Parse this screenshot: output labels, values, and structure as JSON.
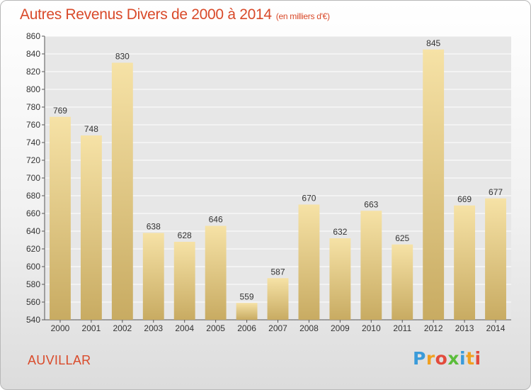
{
  "header": {
    "title": "Autres Revenus Divers de 2000 à 2014",
    "unit": "(en milliers d'€)"
  },
  "footer": {
    "place": "AUVILLAR",
    "logo_letters": [
      "P",
      "r",
      "o",
      "x",
      "i",
      "t",
      "i"
    ]
  },
  "colors": {
    "title": "#d94a2a",
    "bar_light": "#f6e2a6",
    "bar_dark": "#c8ab62",
    "plot_bg": "#e7e7e7",
    "grid": "#ffffff",
    "logo": [
      "#3a9bd9",
      "#f0a020",
      "#e34b3c",
      "#5bbd3a",
      "#3a9bd9",
      "#f0a020",
      "#e34b3c"
    ]
  },
  "chart_data": {
    "type": "bar",
    "categories": [
      "2000",
      "2001",
      "2002",
      "2003",
      "2004",
      "2005",
      "2006",
      "2007",
      "2008",
      "2009",
      "2010",
      "2011",
      "2012",
      "2013",
      "2014"
    ],
    "values": [
      769,
      748,
      830,
      638,
      628,
      646,
      559,
      587,
      670,
      632,
      663,
      625,
      845,
      669,
      677
    ],
    "title": "Autres Revenus Divers de 2000 à 2014",
    "xlabel": "",
    "ylabel": "",
    "ylim": [
      540,
      860
    ],
    "yticks": [
      540,
      560,
      580,
      600,
      620,
      640,
      660,
      680,
      700,
      720,
      740,
      760,
      780,
      800,
      820,
      840,
      860
    ],
    "grid": true,
    "legend": "none"
  }
}
